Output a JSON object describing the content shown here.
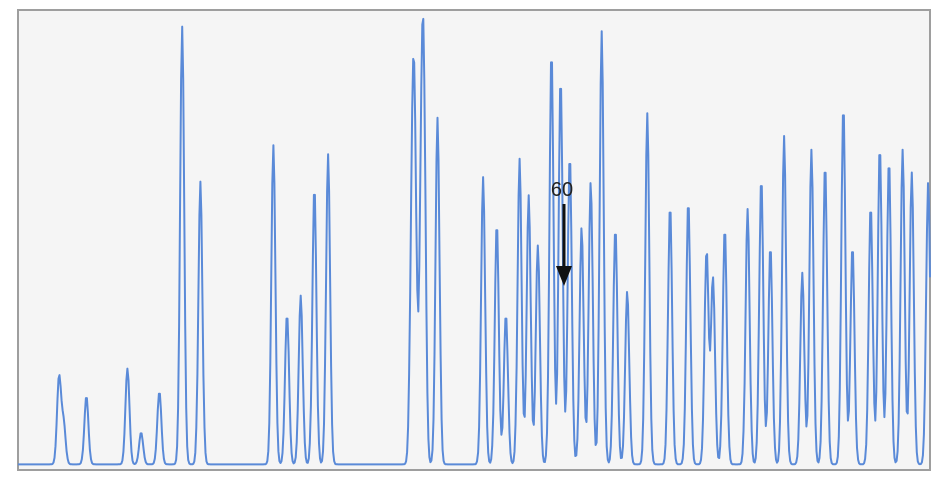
{
  "chart_data": {
    "type": "line",
    "title": "",
    "xlabel": "",
    "ylabel": "",
    "grid": false,
    "legend": "none",
    "xlim": [
      0,
      100
    ],
    "ylim": [
      0,
      100
    ],
    "background_color": "#f5f5f5",
    "frame_color": "#9e9e9e",
    "line_color": "#5a8ad8",
    "series": [
      {
        "peaks": [
          [
            4.5,
            19
          ],
          [
            5.0,
            9
          ],
          [
            7.5,
            15
          ],
          [
            12,
            21
          ],
          [
            13.5,
            7
          ],
          [
            15.5,
            16
          ],
          [
            18,
            96
          ],
          [
            20,
            62
          ],
          [
            28,
            70
          ],
          [
            29.5,
            33
          ],
          [
            31,
            37
          ],
          [
            32.5,
            61
          ],
          [
            34,
            68
          ],
          [
            43.5,
            63
          ],
          [
            43.2,
            50
          ],
          [
            44.5,
            73
          ],
          [
            44.2,
            50
          ],
          [
            46,
            76
          ],
          [
            51,
            63
          ],
          [
            52.5,
            53
          ],
          [
            55,
            67
          ],
          [
            53.5,
            33
          ],
          [
            56,
            59
          ],
          [
            57,
            48
          ],
          [
            58.5,
            91
          ],
          [
            59.5,
            85
          ],
          [
            60.5,
            68
          ],
          [
            61.8,
            52
          ],
          [
            62.8,
            62
          ],
          [
            64,
            95
          ],
          [
            65.5,
            52
          ],
          [
            66.8,
            38
          ],
          [
            69,
            77
          ],
          [
            71.5,
            57
          ],
          [
            73.5,
            58
          ],
          [
            75.5,
            47
          ],
          [
            76.2,
            41
          ],
          [
            77.5,
            52
          ],
          [
            80,
            56
          ],
          [
            81.5,
            63
          ],
          [
            82.5,
            48
          ],
          [
            84,
            72
          ],
          [
            86,
            42
          ],
          [
            87,
            69
          ],
          [
            88.5,
            66
          ],
          [
            90.5,
            79
          ],
          [
            91.5,
            48
          ],
          [
            93.5,
            57
          ],
          [
            94.5,
            70
          ],
          [
            95.5,
            67
          ],
          [
            97,
            69
          ],
          [
            98,
            64
          ],
          [
            99.8,
            62
          ]
        ]
      }
    ],
    "annotations": [
      {
        "text": "60",
        "style": "arrow-down"
      }
    ]
  }
}
